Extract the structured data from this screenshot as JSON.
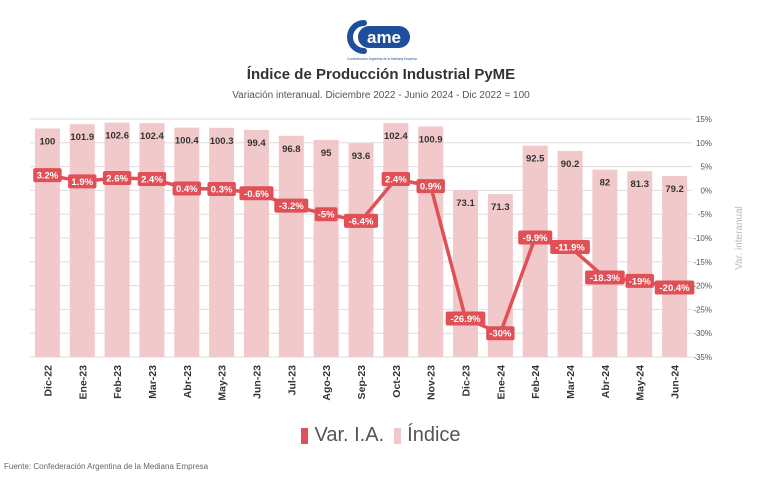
{
  "logo": {
    "text": "ame",
    "tagline": "Confederación Argentina de la Mediana Empresa"
  },
  "title": "Índice de Producción Industrial PyME",
  "subtitle": "Variación interanual. Diciembre 2022 - Junio 2024 - Dic 2022 = 100",
  "source": "Fuente: Confederación Argentina de la Mediana Empresa",
  "colors": {
    "bar": "#f2c9cb",
    "line": "#e05056",
    "label_bg": "#e05056",
    "grid": "#dddddd",
    "text": "#333333"
  },
  "chart_data": {
    "type": "bar",
    "categories": [
      "Dic-22",
      "Ene-23",
      "Feb-23",
      "Mar-23",
      "Abr-23",
      "May-23",
      "Jun-23",
      "Jul-23",
      "Ago-23",
      "Sep-23",
      "Oct-23",
      "Nov-23",
      "Dic-23",
      "Ene-24",
      "Feb-24",
      "Mar-24",
      "Abr-24",
      "May-24",
      "Jun-24"
    ],
    "series": [
      {
        "name": "Índice",
        "type": "bar",
        "values": [
          100,
          101.9,
          102.6,
          102.4,
          100.4,
          100.3,
          99.4,
          96.8,
          95,
          93.6,
          102.4,
          100.9,
          73.1,
          71.3,
          92.5,
          90.2,
          82,
          81.3,
          79.2
        ],
        "labels": [
          "100",
          "101.9",
          "102.6",
          "102.4",
          "100.4",
          "100.3",
          "99.4",
          "96.8",
          "95",
          "93.6",
          "102.4",
          "100.9",
          "73.1",
          "71.3",
          "92.5",
          "90.2",
          "82",
          "81.3",
          "79.2"
        ]
      },
      {
        "name": "Var. I.A.",
        "type": "line",
        "axis": "right",
        "values": [
          3.2,
          1.9,
          2.6,
          2.4,
          0.4,
          0.3,
          -0.6,
          -3.2,
          -5,
          -6.4,
          2.4,
          0.9,
          -26.9,
          -30,
          -9.9,
          -11.9,
          -18.3,
          -19,
          -20.4
        ],
        "labels": [
          "3.2%",
          "1.9%",
          "2.6%",
          "2.4%",
          "0.4%",
          "0.3%",
          "-0.6%",
          "-3.2%",
          "-5%",
          "-6.4%",
          "2.4%",
          "0.9%",
          "-26.9%",
          "-30%",
          "-9.9%",
          "-11.9%",
          "-18.3%",
          "-19%",
          "-20.4%"
        ]
      }
    ],
    "y2lim": [
      -35,
      15
    ],
    "y2ticks": [
      "15%",
      "10%",
      "5%",
      "0%",
      "-5%",
      "-10%",
      "-15%",
      "-20%",
      "-25%",
      "-30%",
      "-35%"
    ],
    "y2label": "Var. interanual",
    "grid": true,
    "legend": "bottom"
  }
}
